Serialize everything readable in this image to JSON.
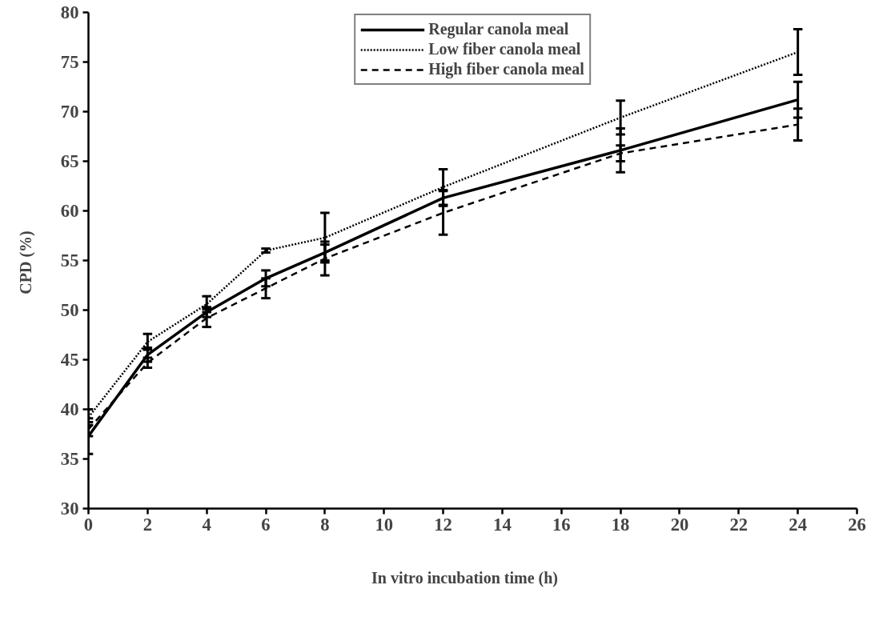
{
  "chart_data": {
    "type": "line",
    "xlabel": "In  vitro  incubation  time  (h)",
    "ylabel": "CPD  (%)",
    "x": [
      0,
      2,
      4,
      6,
      8,
      12,
      18,
      24
    ],
    "series": [
      {
        "name": "Regular canola meal",
        "color": "#000000",
        "line_style": "solid",
        "values": [
          37.3,
          45.5,
          49.8,
          53.2,
          55.8,
          61.3,
          66.1,
          71.2
        ],
        "errors": [
          1.8,
          0.7,
          0.5,
          0.8,
          0.8,
          0.8,
          2.2,
          1.8
        ]
      },
      {
        "name": "Low fiber canola meal",
        "color": "#000000",
        "line_style": "dotted",
        "values": [
          39.2,
          46.8,
          50.6,
          56.0,
          57.3,
          62.4,
          69.4,
          76.0
        ],
        "errors": [
          0.8,
          0.8,
          0.8,
          0.2,
          2.5,
          1.8,
          1.7,
          2.3
        ]
      },
      {
        "name": "High fiber canola meal",
        "color": "#000000",
        "line_style": "dashed",
        "values": [
          38.0,
          44.7,
          49.2,
          52.2,
          55.2,
          59.8,
          65.8,
          68.7
        ],
        "errors": [
          0.7,
          0.5,
          0.9,
          1.0,
          1.7,
          2.2,
          0.8,
          1.6
        ]
      }
    ],
    "xlim": [
      0,
      26
    ],
    "ylim": [
      30,
      80
    ],
    "xticks": [
      0,
      2,
      4,
      6,
      8,
      10,
      12,
      14,
      16,
      18,
      20,
      22,
      24,
      26
    ],
    "yticks": [
      30,
      35,
      40,
      45,
      50,
      55,
      60,
      65,
      70,
      75,
      80
    ],
    "grid": false,
    "legend": "top",
    "marker": "none"
  }
}
